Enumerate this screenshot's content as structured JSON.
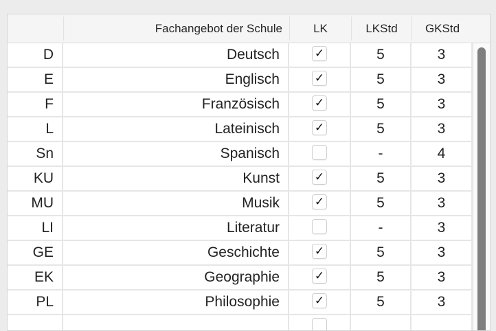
{
  "header": {
    "col0": "",
    "col1": "Fachangebot der Schule",
    "col2": "LK",
    "col3": "LKStd",
    "col4": "GKStd"
  },
  "rows": [
    {
      "code": "D",
      "name": "Deutsch",
      "lk": true,
      "lkstd": "5",
      "gkstd": "3"
    },
    {
      "code": "E",
      "name": "Englisch",
      "lk": true,
      "lkstd": "5",
      "gkstd": "3"
    },
    {
      "code": "F",
      "name": "Französisch",
      "lk": true,
      "lkstd": "5",
      "gkstd": "3"
    },
    {
      "code": "L",
      "name": "Lateinisch",
      "lk": true,
      "lkstd": "5",
      "gkstd": "3"
    },
    {
      "code": "Sn",
      "name": "Spanisch",
      "lk": false,
      "lkstd": "-",
      "gkstd": "4"
    },
    {
      "code": "KU",
      "name": "Kunst",
      "lk": true,
      "lkstd": "5",
      "gkstd": "3"
    },
    {
      "code": "MU",
      "name": "Musik",
      "lk": true,
      "lkstd": "5",
      "gkstd": "3"
    },
    {
      "code": "LI",
      "name": "Literatur",
      "lk": false,
      "lkstd": "-",
      "gkstd": "3"
    },
    {
      "code": "GE",
      "name": "Geschichte",
      "lk": true,
      "lkstd": "5",
      "gkstd": "3"
    },
    {
      "code": "EK",
      "name": "Geographie",
      "lk": true,
      "lkstd": "5",
      "gkstd": "3"
    },
    {
      "code": "PL",
      "name": "Philosophie",
      "lk": true,
      "lkstd": "5",
      "gkstd": "3"
    },
    {
      "code": "",
      "name": "",
      "lk": false,
      "lkstd": "",
      "gkstd": ""
    }
  ],
  "icons": {
    "check": "checkmark-icon"
  }
}
